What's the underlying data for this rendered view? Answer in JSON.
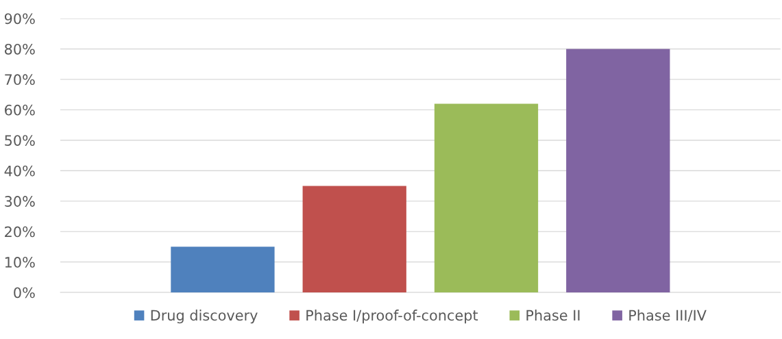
{
  "chart_data": {
    "type": "bar",
    "categories": [
      null
    ],
    "series": [
      {
        "name": "Drug discovery",
        "color": "#4f81bd",
        "values": [
          15
        ]
      },
      {
        "name": "Phase I/proof-of-concept",
        "color": "#c0504d",
        "values": [
          35
        ]
      },
      {
        "name": "Phase II",
        "color": "#9bbb59",
        "values": [
          62
        ]
      },
      {
        "name": "Phase III/IV",
        "color": "#8064a2",
        "values": [
          80
        ]
      }
    ],
    "ylim": [
      0,
      90
    ],
    "yticks": [
      {
        "value": 0,
        "label": "0%"
      },
      {
        "value": 10,
        "label": "10%"
      },
      {
        "value": 20,
        "label": "20%"
      },
      {
        "value": 30,
        "label": "30%"
      },
      {
        "value": 40,
        "label": "40%"
      },
      {
        "value": 50,
        "label": "50%"
      },
      {
        "value": 60,
        "label": "60%"
      },
      {
        "value": 70,
        "label": "70%"
      },
      {
        "value": 80,
        "label": "80%"
      },
      {
        "value": 90,
        "label": "90%"
      }
    ],
    "grid": "y",
    "legend": "bottom"
  }
}
